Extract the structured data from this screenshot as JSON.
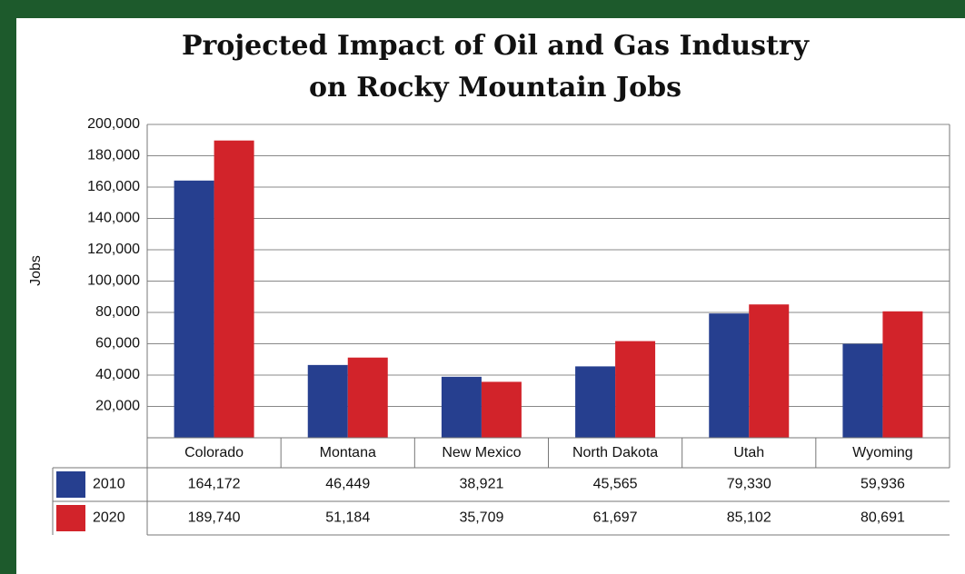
{
  "chart_data": {
    "type": "bar",
    "title_lines": [
      "Projected Impact of Oil and Gas Industry",
      "on Rocky Mountain Jobs"
    ],
    "y_label": "Jobs",
    "categories": [
      "Colorado",
      "Montana",
      "New Mexico",
      "North Dakota",
      "Utah",
      "Wyoming"
    ],
    "series": [
      {
        "name": "2010",
        "color": "#263f8f",
        "values": [
          164172,
          46449,
          38921,
          45565,
          79330,
          59936
        ],
        "value_labels": [
          "164,172",
          "46,449",
          "38,921",
          "45,565",
          "79,330",
          "59,936"
        ]
      },
      {
        "name": "2020",
        "color": "#d2232a",
        "values": [
          189740,
          51184,
          35709,
          61697,
          85102,
          80691
        ],
        "value_labels": [
          "189,740",
          "51,184",
          "35,709",
          "61,697",
          "85,102",
          "80,691"
        ]
      }
    ],
    "ylim": [
      0,
      200000
    ],
    "yticks": [
      {
        "value": 20000,
        "label": "20,000"
      },
      {
        "value": 40000,
        "label": "40,000"
      },
      {
        "value": 60000,
        "label": "60,000"
      },
      {
        "value": 80000,
        "label": "80,000"
      },
      {
        "value": 100000,
        "label": "100,000"
      },
      {
        "value": 120000,
        "label": "120,000"
      },
      {
        "value": 140000,
        "label": "140,000"
      },
      {
        "value": 160000,
        "label": "160,000"
      },
      {
        "value": 180000,
        "label": "180,000"
      },
      {
        "value": 200000,
        "label": "200,000"
      }
    ],
    "grid": true
  }
}
